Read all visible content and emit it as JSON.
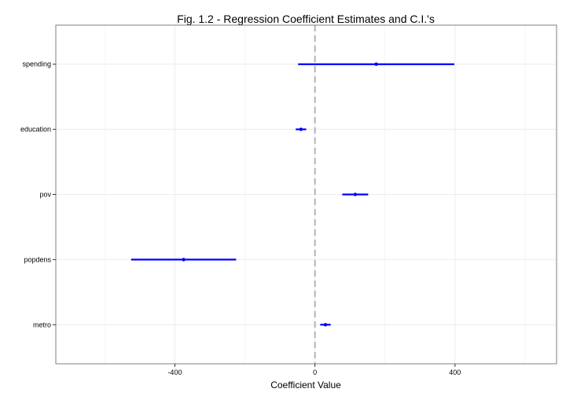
{
  "chart_data": {
    "type": "dot-interval",
    "title": "Fig. 1.2 - Regression Coefficient Estimates and C.I.'s",
    "xlabel": "Coefficient Value",
    "ylabel": "",
    "xlim": [
      -740,
      690
    ],
    "xticks": [
      -400,
      0,
      400
    ],
    "xtick_labels": [
      "-400",
      "0",
      "400"
    ],
    "categories": [
      "spending",
      "education",
      "pov",
      "popdens",
      "metro"
    ],
    "estimates": [
      175,
      -40,
      115,
      -375,
      30
    ],
    "lower": [
      -48,
      -55,
      78,
      -525,
      15
    ],
    "upper": [
      398,
      -25,
      152,
      -225,
      45
    ],
    "reference_line": 0,
    "grid": true,
    "colors": {
      "interval": "#0000ff",
      "point": "#0000ff",
      "reference": "#b3b3b3",
      "grid": "#ececec",
      "panel_border": "#7f7f7f"
    }
  }
}
